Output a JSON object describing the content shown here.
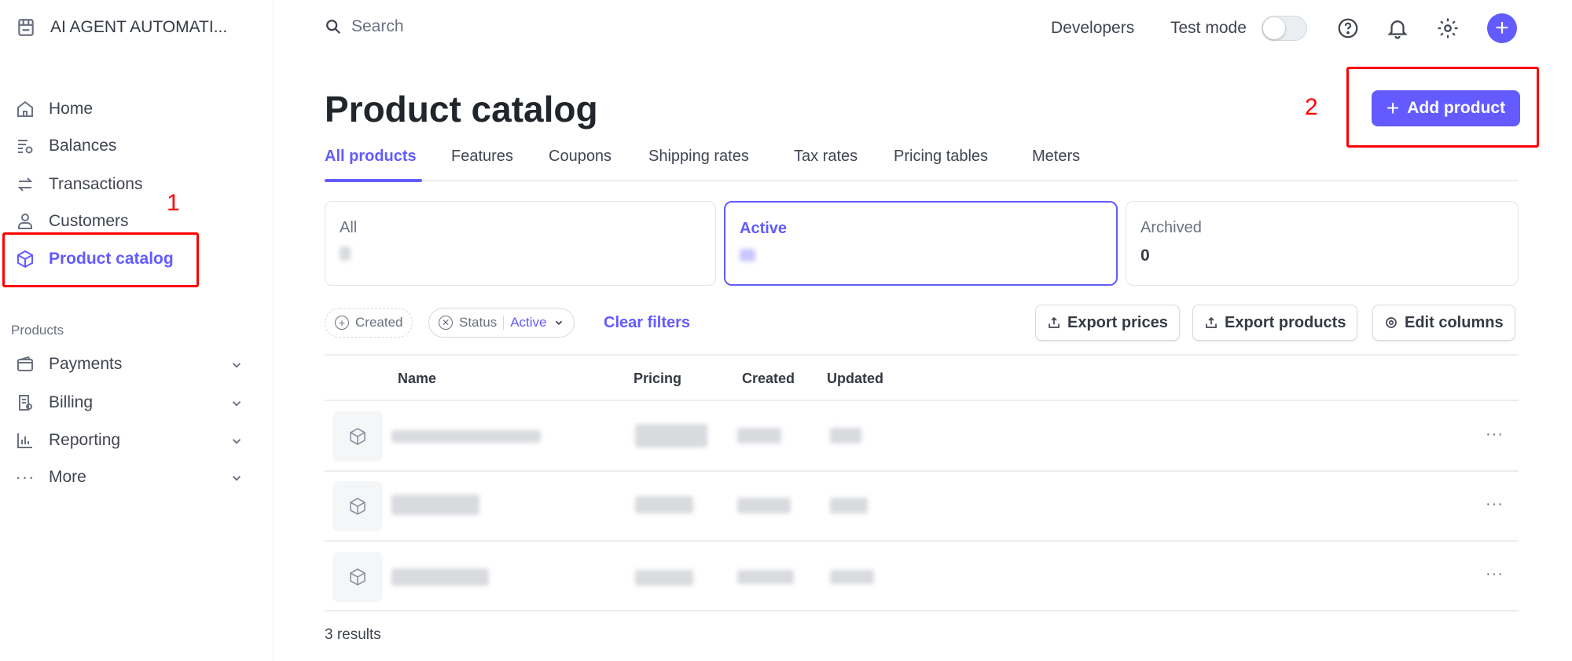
{
  "account": {
    "name": "AI AGENT AUTOMATI..."
  },
  "sidebar": {
    "items": [
      {
        "label": "Home",
        "icon": "home-icon"
      },
      {
        "label": "Balances",
        "icon": "balances-icon"
      },
      {
        "label": "Transactions",
        "icon": "transactions-icon"
      },
      {
        "label": "Customers",
        "icon": "customers-icon"
      },
      {
        "label": "Product catalog",
        "icon": "box-icon",
        "active": true
      }
    ],
    "section_label": "Products",
    "product_items": [
      {
        "label": "Payments",
        "icon": "wallet-icon"
      },
      {
        "label": "Billing",
        "icon": "billing-icon"
      },
      {
        "label": "Reporting",
        "icon": "reporting-icon"
      },
      {
        "label": "More",
        "icon": "more-icon"
      }
    ]
  },
  "topbar": {
    "search_placeholder": "Search",
    "developers": "Developers",
    "test_mode": "Test mode",
    "test_mode_on": false
  },
  "page": {
    "title": "Product catalog",
    "add_button": "Add product"
  },
  "tabs": [
    {
      "label": "All products",
      "active": true
    },
    {
      "label": "Features"
    },
    {
      "label": "Coupons"
    },
    {
      "label": "Shipping rates"
    },
    {
      "label": "Tax rates"
    },
    {
      "label": "Pricing tables"
    },
    {
      "label": "Meters"
    }
  ],
  "status_cards": [
    {
      "label": "All",
      "count": null
    },
    {
      "label": "Active",
      "count": null,
      "active": true
    },
    {
      "label": "Archived",
      "count": "0"
    }
  ],
  "filters": {
    "created": "Created",
    "status": "Status",
    "status_value": "Active",
    "clear": "Clear filters"
  },
  "actions": {
    "export_prices": "Export prices",
    "export_products": "Export products",
    "edit_columns": "Edit columns"
  },
  "table": {
    "columns": [
      "Name",
      "Pricing",
      "Created",
      "Updated"
    ],
    "rows_redacted": 3
  },
  "footer": {
    "results": "3 results"
  },
  "annotations": {
    "first": "1",
    "second": "2"
  },
  "colors": {
    "accent": "#635bff",
    "annotation": "#ff0000"
  }
}
